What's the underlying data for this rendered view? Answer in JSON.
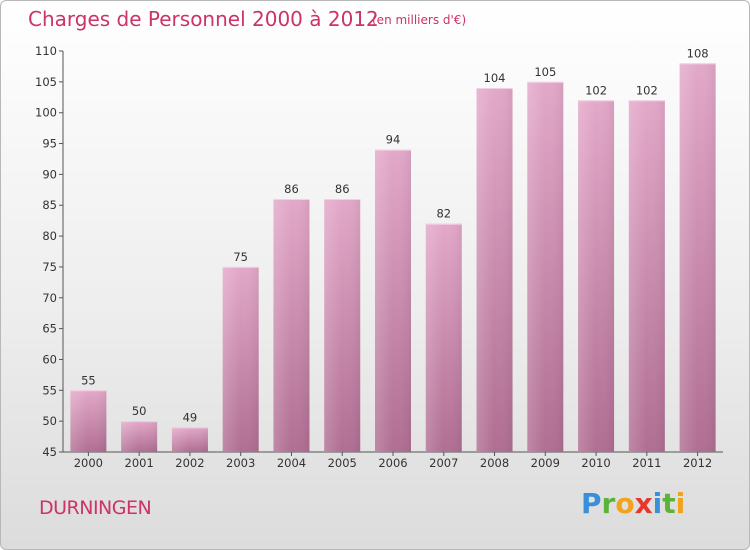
{
  "header": {
    "title": "Charges de Personnel 2000 à 2012",
    "subtitle": "(en milliers d'€)"
  },
  "footer": {
    "place": "DURNINGEN",
    "brand_letters": [
      {
        "ch": "P",
        "color": "#3a8fd9"
      },
      {
        "ch": "r",
        "color": "#5bb33a"
      },
      {
        "ch": "o",
        "color": "#f2a21b"
      },
      {
        "ch": "x",
        "color": "#e8362d"
      },
      {
        "ch": "i",
        "color": "#3a8fd9"
      },
      {
        "ch": "t",
        "color": "#5bb33a"
      },
      {
        "ch": "i",
        "color": "#f2a21b"
      }
    ]
  },
  "chart_data": {
    "type": "bar",
    "title": "Charges de Personnel 2000 à 2012",
    "subtitle": "(en milliers d'€)",
    "categories": [
      "2000",
      "2001",
      "2002",
      "2003",
      "2004",
      "2005",
      "2006",
      "2007",
      "2008",
      "2009",
      "2010",
      "2011",
      "2012"
    ],
    "values": [
      55,
      50,
      49,
      75,
      86,
      86,
      94,
      82,
      104,
      105,
      102,
      102,
      108
    ],
    "ylim": [
      45,
      110
    ],
    "yticks": [
      45,
      50,
      55,
      60,
      65,
      70,
      75,
      80,
      85,
      90,
      95,
      100,
      105,
      110
    ],
    "grid": false,
    "bar_color": "#c77fa6",
    "bar_color_top": "#e3a8c9"
  }
}
